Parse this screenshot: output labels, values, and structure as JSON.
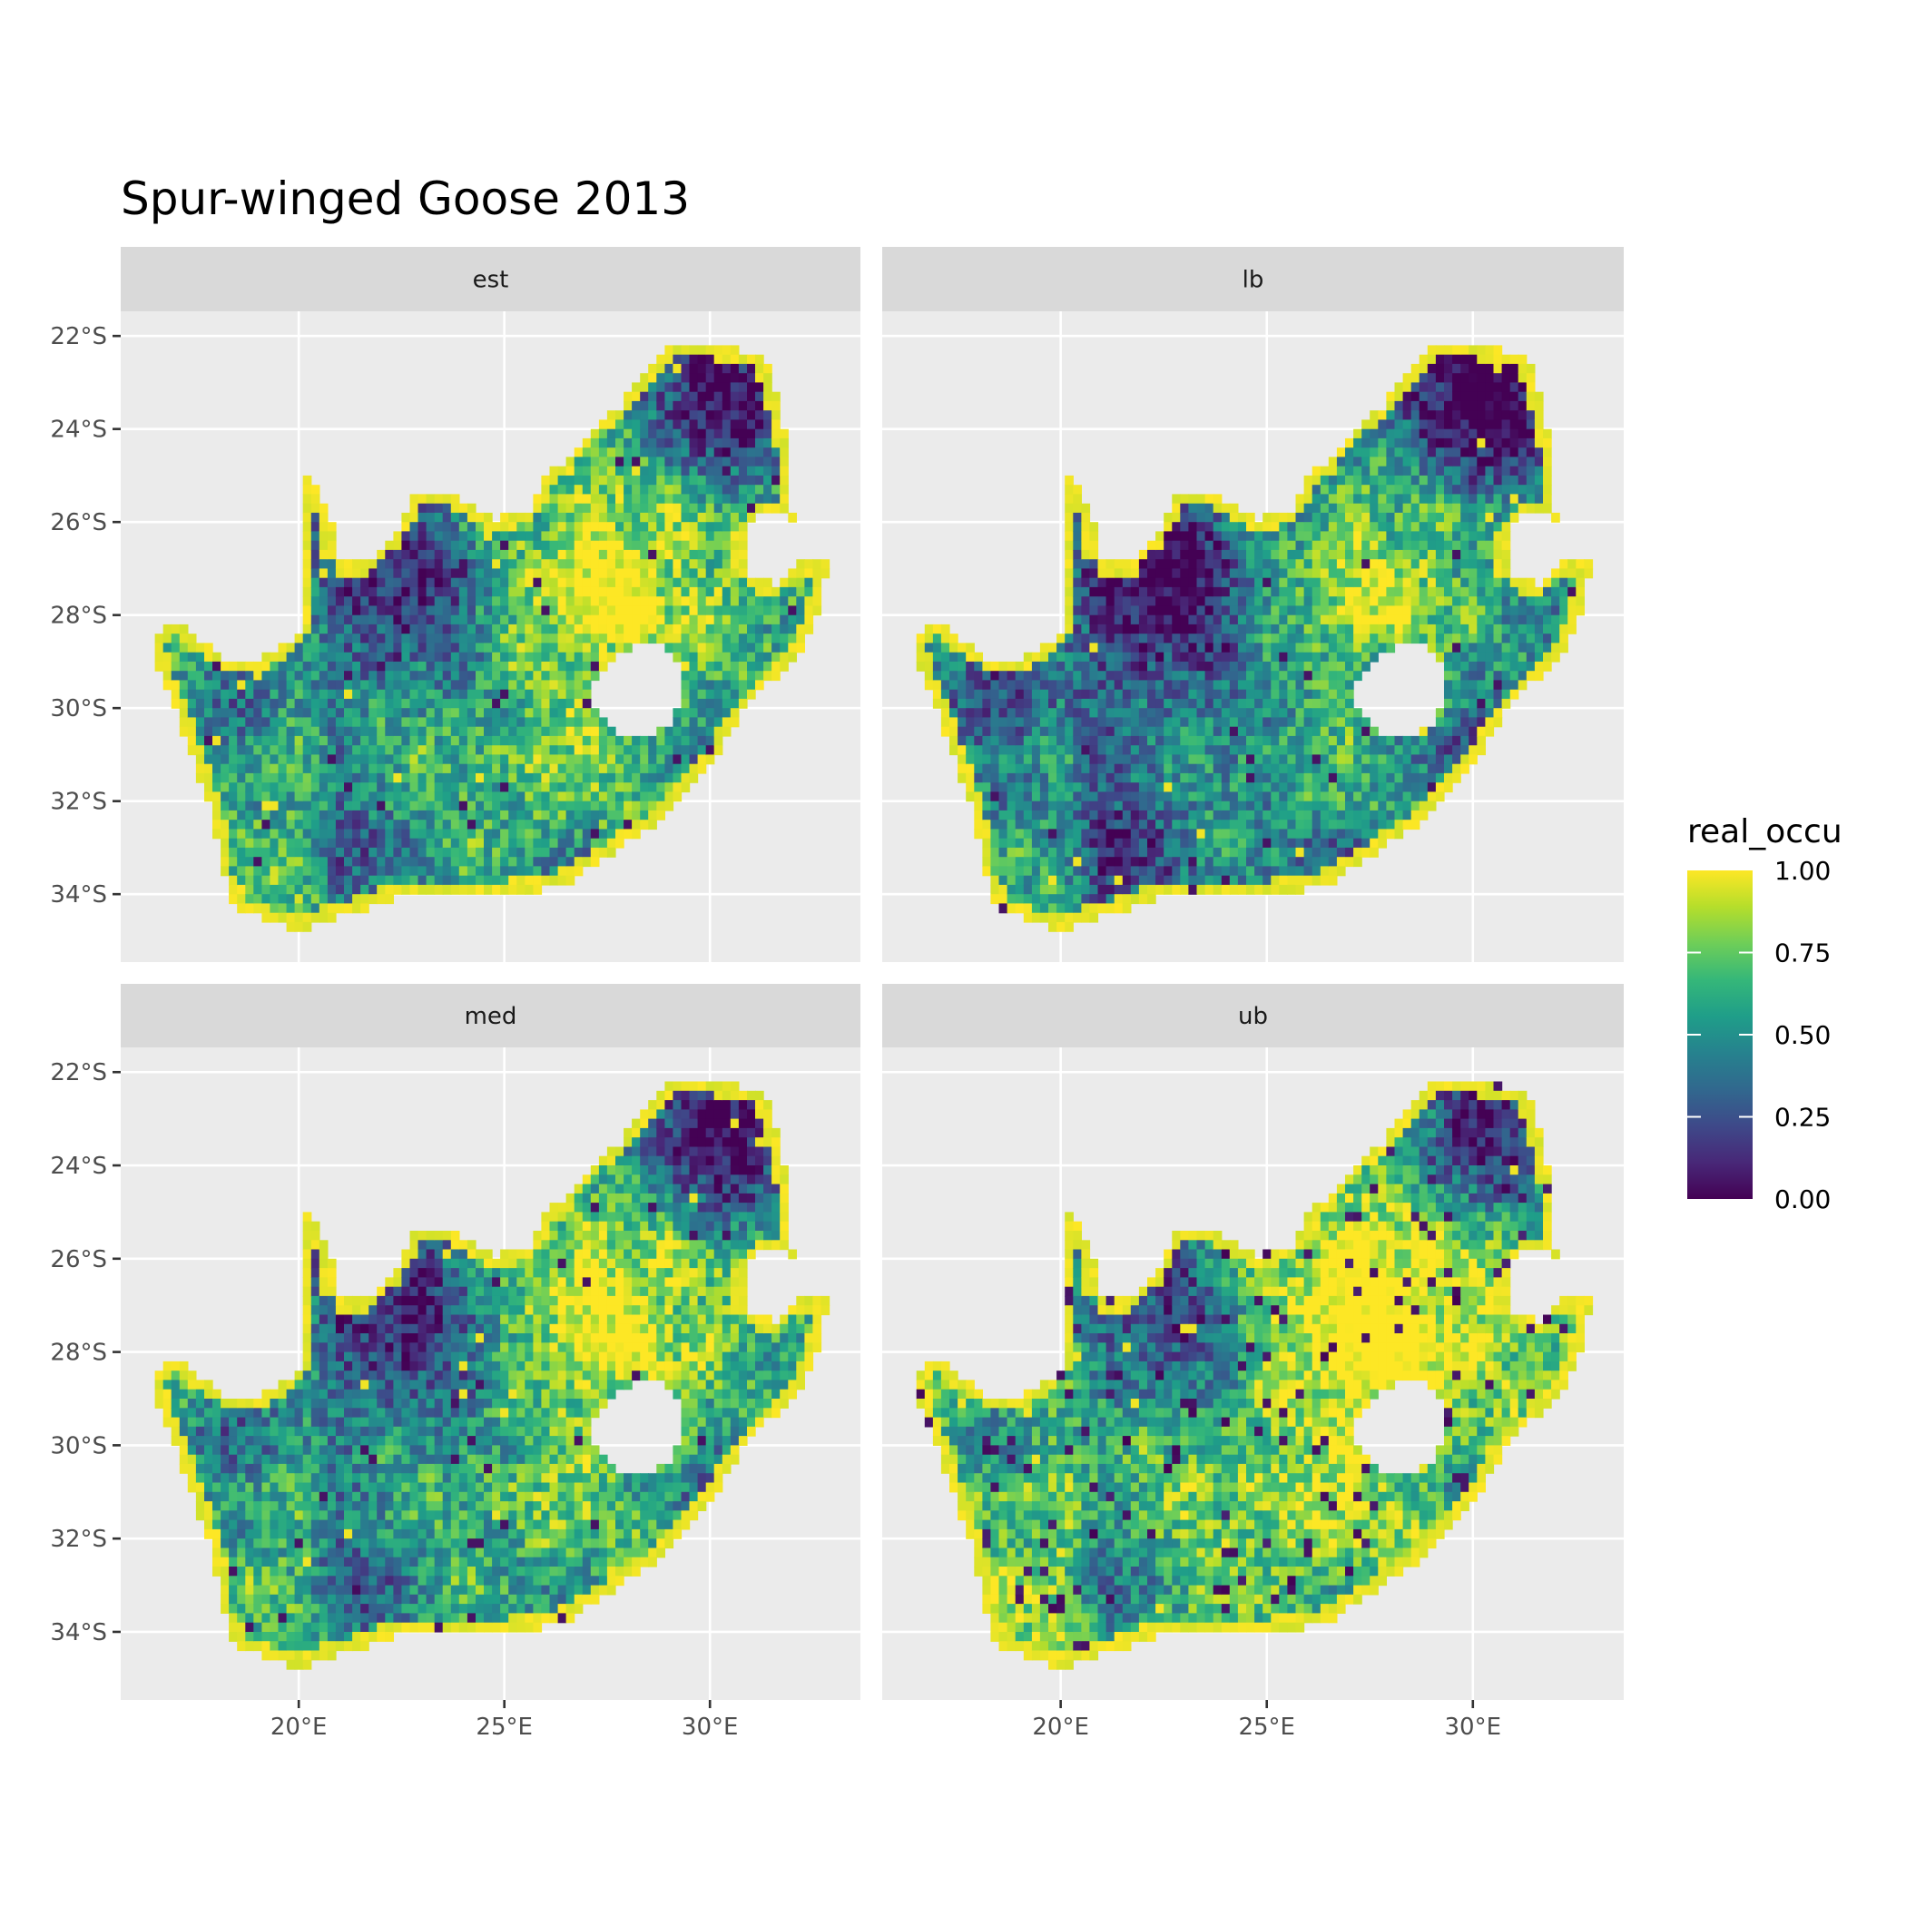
{
  "chart_data": {
    "type": "heatmap",
    "title": "Spur-winged Goose 2013",
    "facets": [
      "est",
      "lb",
      "med",
      "ub"
    ],
    "x_ticks": [
      {
        "value": 20,
        "label": "20°E"
      },
      {
        "value": 25,
        "label": "25°E"
      },
      {
        "value": 30,
        "label": "30°E"
      }
    ],
    "y_ticks": [
      {
        "value": -22,
        "label": "22°S"
      },
      {
        "value": -24,
        "label": "24°S"
      },
      {
        "value": -26,
        "label": "26°S"
      },
      {
        "value": -28,
        "label": "28°S"
      },
      {
        "value": -30,
        "label": "30°S"
      },
      {
        "value": -32,
        "label": "32°S"
      },
      {
        "value": -34,
        "label": "34°S"
      }
    ],
    "xlim": [
      15.67,
      33.66
    ],
    "ylim": [
      -35.46,
      -21.47
    ],
    "grid": true,
    "legend": {
      "title": "real_occu",
      "position": "right",
      "ticks": [
        {
          "value": 1.0,
          "label": "1.00"
        },
        {
          "value": 0.75,
          "label": "0.75"
        },
        {
          "value": 0.5,
          "label": "0.50"
        },
        {
          "value": 0.25,
          "label": "0.25"
        },
        {
          "value": 0.0,
          "label": "0.00"
        }
      ],
      "range": [
        0,
        1
      ],
      "colorscale": "viridis",
      "colors": [
        "#440154",
        "#3b528b",
        "#21908c",
        "#5dc863",
        "#fde725"
      ]
    }
  }
}
